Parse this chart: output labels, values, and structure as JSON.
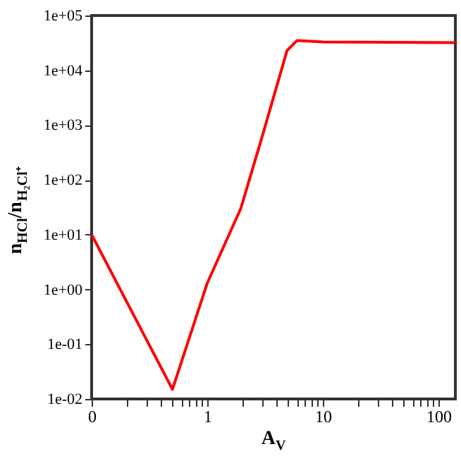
{
  "chart_data": {
    "type": "line",
    "xlabel": "A$_{V}$",
    "ylabel": "n$_{HCl}$/n$_{H₂Cl⁺}$",
    "log": "xy",
    "grid": false,
    "marker": "none",
    "line_style": "solid",
    "xlim": [
      0.1,
      140
    ],
    "ylim": [
      0.01,
      100000
    ],
    "xticks": [
      {
        "value": 0.1,
        "label": "0"
      },
      {
        "value": 0.2,
        "label": null
      },
      {
        "value": 0.3,
        "label": null
      },
      {
        "value": 0.4,
        "label": null
      },
      {
        "value": 0.5,
        "label": null
      },
      {
        "value": 0.6,
        "label": null
      },
      {
        "value": 0.7,
        "label": null
      },
      {
        "value": 0.8,
        "label": null
      },
      {
        "value": 0.9,
        "label": null
      },
      1,
      {
        "value": 2,
        "label": null
      },
      {
        "value": 3,
        "label": null
      },
      {
        "value": 4,
        "label": null
      },
      {
        "value": 5,
        "label": null
      },
      {
        "value": 6,
        "label": null
      },
      {
        "value": 7,
        "label": null
      },
      {
        "value": 8,
        "label": null
      },
      {
        "value": 9,
        "label": null
      },
      10,
      {
        "value": 20,
        "label": null
      },
      {
        "value": 30,
        "label": null
      },
      {
        "value": 40,
        "label": null
      },
      {
        "value": 50,
        "label": null
      },
      {
        "value": 60,
        "label": null
      },
      {
        "value": 70,
        "label": null
      },
      {
        "value": 80,
        "label": null
      },
      {
        "value": 90,
        "label": null
      },
      100
    ],
    "yticks": [
      {
        "value": 0.01,
        "label": "1e-02"
      },
      {
        "value": 0.1,
        "label": "1e-01"
      },
      {
        "value": 1,
        "label": "1e+00"
      },
      {
        "value": 10,
        "label": "1e+01"
      },
      {
        "value": 100,
        "label": "1e+02"
      },
      {
        "value": 1000,
        "label": "1e+03"
      },
      {
        "value": 10000,
        "label": "1e+04"
      },
      {
        "value": 100000,
        "label": "1e+05"
      }
    ],
    "x": [
      0.1,
      0.5,
      1,
      1.95,
      2.9,
      4.9,
      6,
      10,
      140
    ],
    "series": [
      {
        "color": "#ff0000",
        "values": [
          10,
          0.015,
          1.3,
          30,
          500,
          23000,
          35000,
          33000,
          32000
        ]
      }
    ]
  }
}
